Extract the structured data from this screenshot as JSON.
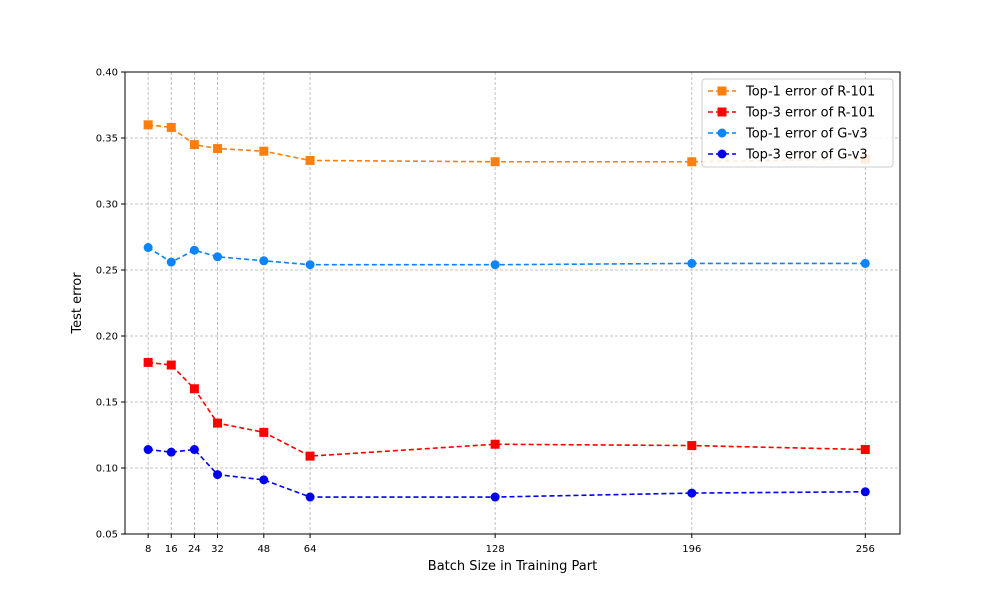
{
  "chart_data": {
    "type": "line",
    "xlabel": "Batch Size in Training Part",
    "ylabel": "Test error",
    "x": [
      8,
      16,
      24,
      32,
      48,
      64,
      128,
      196,
      256
    ],
    "xticks": [
      "8",
      "16",
      "24",
      "32",
      "48",
      "64",
      "128",
      "196",
      "256"
    ],
    "xlim": [
      0,
      268
    ],
    "ylim": [
      0.05,
      0.4
    ],
    "yticks": [
      "0.05",
      "0.10",
      "0.15",
      "0.20",
      "0.25",
      "0.30",
      "0.35",
      "0.40"
    ],
    "grid": true,
    "legend_position": "top-right",
    "series": [
      {
        "name": "Top-1 error of R-101",
        "color": "#ff7f0e",
        "marker": "square",
        "values": [
          0.36,
          0.358,
          0.345,
          0.342,
          0.34,
          0.333,
          0.332,
          0.332,
          0.334
        ]
      },
      {
        "name": "Top-3 error of R-101",
        "color": "#ff0000",
        "marker": "square",
        "values": [
          0.18,
          0.178,
          0.16,
          0.134,
          0.127,
          0.109,
          0.118,
          0.117,
          0.114
        ]
      },
      {
        "name": "Top-1 error of G-v3",
        "color": "#0a84ff",
        "marker": "circle",
        "values": [
          0.267,
          0.256,
          0.265,
          0.26,
          0.257,
          0.254,
          0.254,
          0.255,
          0.255
        ]
      },
      {
        "name": "Top-3 error of G-v3",
        "color": "#0000ee",
        "marker": "circle",
        "values": [
          0.114,
          0.112,
          0.114,
          0.095,
          0.091,
          0.078,
          0.078,
          0.081,
          0.082
        ]
      }
    ]
  }
}
